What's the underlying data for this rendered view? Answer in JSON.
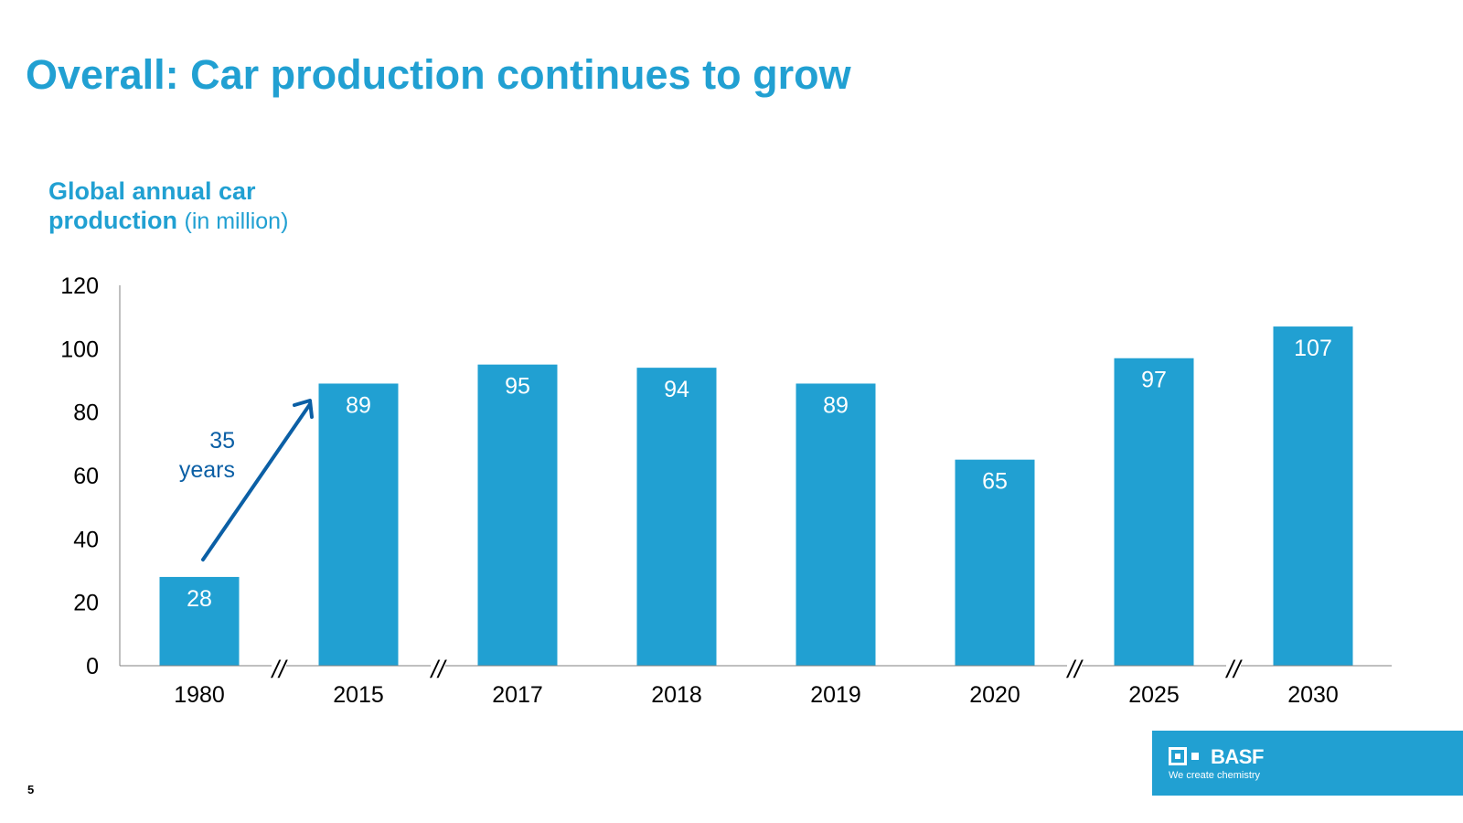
{
  "slide": {
    "title": "Overall: Car production continues to grow",
    "page_number": "5"
  },
  "chart_label": {
    "strong_line1": "Global annual car",
    "strong_line2": "production",
    "unit": "(in million)"
  },
  "annotation": {
    "line1": "35",
    "line2": "years"
  },
  "brand": {
    "name": "BASF",
    "tagline": "We create chemistry"
  },
  "colors": {
    "accent": "#21A0D2",
    "bar": "#21A0D2",
    "arrow": "#0B5FA5",
    "axis": "#808080",
    "text": "#000000"
  },
  "chart_data": {
    "type": "bar",
    "categories": [
      "1980",
      "2015",
      "2017",
      "2018",
      "2019",
      "2020",
      "2025",
      "2030"
    ],
    "values": [
      28,
      89,
      95,
      94,
      89,
      65,
      97,
      107
    ],
    "data_labels": [
      "28",
      "89",
      "95",
      "94",
      "89",
      "65",
      "97",
      "107"
    ],
    "yticks": [
      "0",
      "20",
      "40",
      "60",
      "80",
      "100",
      "120"
    ],
    "ylim": [
      0,
      120
    ],
    "axis_breaks_after": [
      "1980",
      "2015",
      "2020",
      "2025"
    ],
    "axis_break_symbol": "//",
    "grid": false,
    "legend": false
  }
}
